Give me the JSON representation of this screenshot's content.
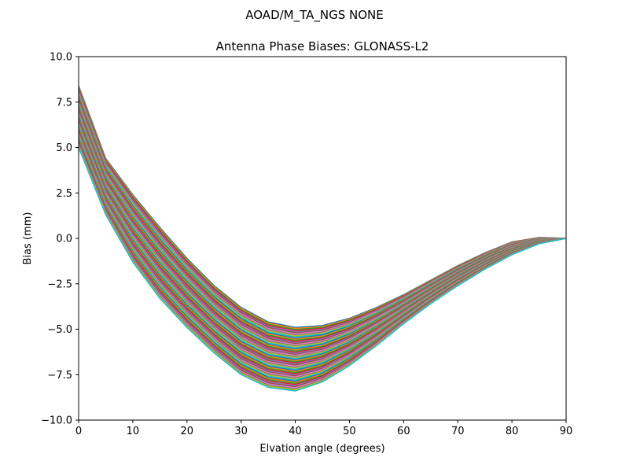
{
  "suptitle": "AOAD/M_TA_NGS   NONE",
  "chart_data": {
    "type": "line",
    "title": "Antenna Phase Biases: GLONASS-L2",
    "xlabel": "Elvation angle (degrees)",
    "ylabel": "Bias (mm)",
    "xlim": [
      0,
      90
    ],
    "ylim": [
      -10,
      10
    ],
    "x_ticks": [
      0,
      10,
      20,
      30,
      40,
      50,
      60,
      70,
      80,
      90
    ],
    "y_ticks": [
      -10.0,
      -7.5,
      -5.0,
      -2.5,
      0.0,
      2.5,
      5.0,
      7.5,
      10.0
    ],
    "x_tick_labels": [
      "0",
      "10",
      "20",
      "30",
      "40",
      "50",
      "60",
      "70",
      "80",
      "90"
    ],
    "y_tick_labels": [
      "−10.0",
      "−7.5",
      "−5.0",
      "−2.5",
      "0.0",
      "2.5",
      "5.0",
      "7.5",
      "10.0"
    ],
    "grid": false,
    "x": [
      0,
      5,
      10,
      15,
      20,
      25,
      30,
      35,
      40,
      45,
      50,
      55,
      60,
      65,
      70,
      75,
      80,
      85,
      90
    ],
    "envelope": {
      "upper": [
        8.4,
        4.4,
        2.4,
        0.6,
        -1.1,
        -2.6,
        -3.8,
        -4.6,
        -4.9,
        -4.8,
        -4.4,
        -3.8,
        -3.1,
        -2.3,
        -1.5,
        -0.8,
        -0.2,
        0.05,
        0.0
      ],
      "lower": [
        5.0,
        1.3,
        -1.3,
        -3.3,
        -4.9,
        -6.3,
        -7.5,
        -8.2,
        -8.4,
        -7.9,
        -7.0,
        -5.9,
        -4.7,
        -3.6,
        -2.6,
        -1.7,
        -0.9,
        -0.3,
        0.0
      ]
    },
    "series_count": 60,
    "colors": [
      "#1f77b4",
      "#ff7f0e",
      "#2ca02c",
      "#d62728",
      "#9467bd",
      "#8c564b",
      "#e377c2",
      "#7f7f7f",
      "#bcbd22",
      "#17becf"
    ]
  }
}
